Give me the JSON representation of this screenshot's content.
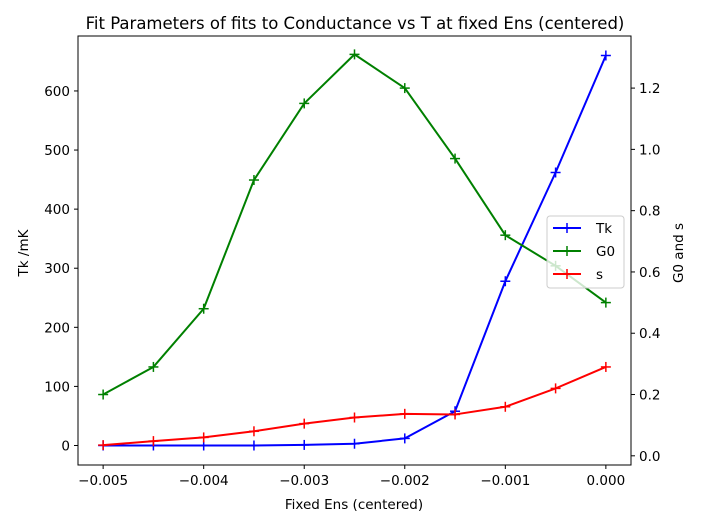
{
  "chart_data": {
    "type": "line",
    "title": "Fit Parameters of fits to Conductance vs T at fixed Ens (centered)",
    "xlabel": "Fixed Ens (centered)",
    "ylabel_left": "Tk /mK",
    "ylabel_right": "G0 and s",
    "x": [
      -0.005,
      -0.0045,
      -0.004,
      -0.0035,
      -0.003,
      -0.0025,
      -0.002,
      -0.0015,
      -0.001,
      -0.0005,
      0.0
    ],
    "xlim": [
      -0.00525,
      0.00025
    ],
    "ylim_left": [
      -33,
      693
    ],
    "ylim_right": [
      -0.03,
      1.37
    ],
    "x_ticks": [
      -0.005,
      -0.004,
      -0.003,
      -0.002,
      -0.001,
      0.0
    ],
    "x_tick_labels": [
      "−0.005",
      "−0.004",
      "−0.003",
      "−0.002",
      "−0.001",
      "0.000"
    ],
    "y_left_ticks": [
      0,
      100,
      200,
      300,
      400,
      500,
      600
    ],
    "y_left_tick_labels": [
      "0",
      "100",
      "200",
      "300",
      "400",
      "500",
      "600"
    ],
    "y_right_ticks": [
      0.0,
      0.2,
      0.4,
      0.6,
      0.8,
      1.0,
      1.2
    ],
    "y_right_tick_labels": [
      "0.0",
      "0.2",
      "0.4",
      "0.6",
      "0.8",
      "1.0",
      "1.2"
    ],
    "legend_position": "center-right",
    "series": [
      {
        "name": "Tk",
        "axis": "left",
        "color": "#0000ff",
        "marker": "plus",
        "values": [
          0,
          0,
          0,
          0,
          1,
          3,
          12,
          58,
          278,
          462,
          660
        ]
      },
      {
        "name": "G0",
        "axis": "right",
        "color": "#008000",
        "marker": "plus",
        "values": [
          0.2,
          0.29,
          0.48,
          0.9,
          1.15,
          1.31,
          1.2,
          0.97,
          0.72,
          0.62,
          0.5
        ]
      },
      {
        "name": "s",
        "axis": "right",
        "color": "#ff0000",
        "marker": "plus",
        "values": [
          0.035,
          0.048,
          0.06,
          0.08,
          0.105,
          0.125,
          0.137,
          0.135,
          0.16,
          0.22,
          0.29
        ]
      }
    ]
  }
}
